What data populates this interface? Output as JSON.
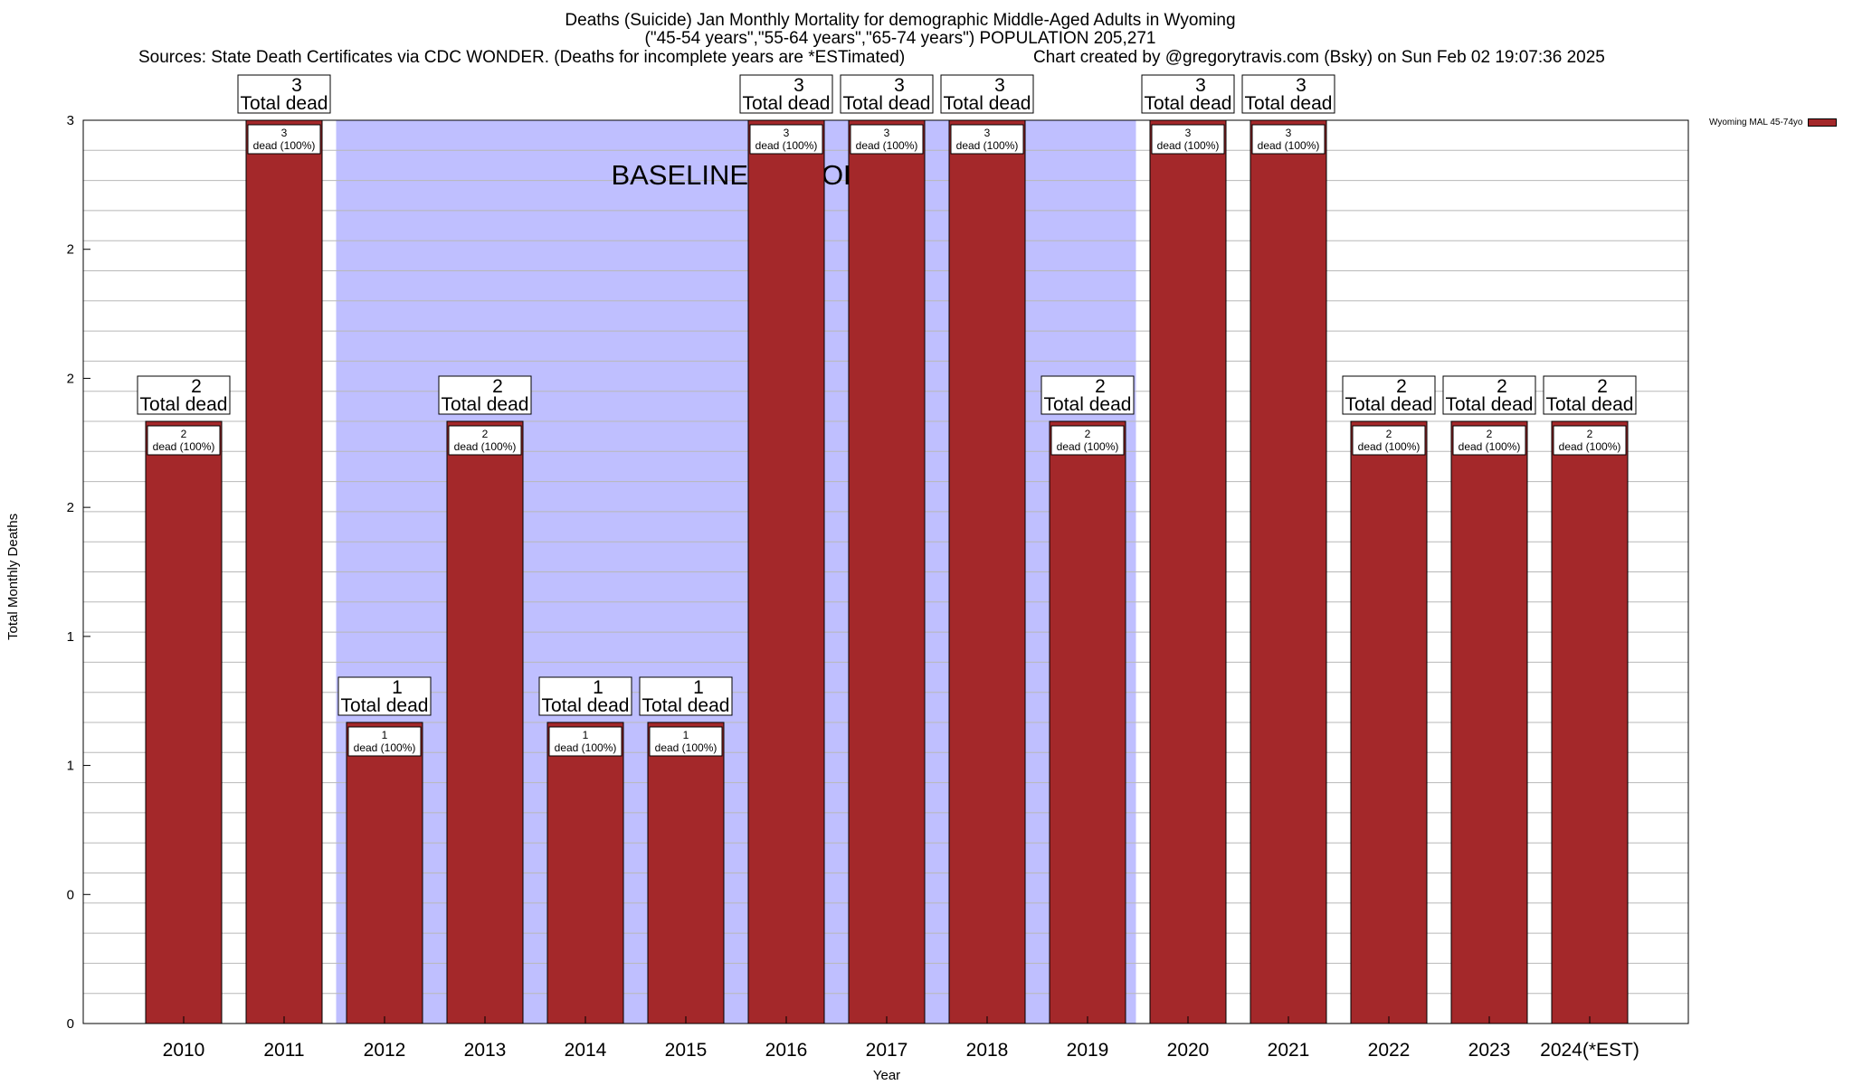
{
  "chart_data": {
    "type": "bar",
    "title": "Deaths (Suicide) Jan Monthly Mortality for demographic Middle-Aged Adults in Wyoming",
    "subtitle": "(\"45-54 years\",\"55-64 years\",\"65-74 years\") POPULATION 205,271",
    "sources": "Sources: State Death Certificates via CDC WONDER. (Deaths for incomplete years are *ESTimated)",
    "credit": "Chart created by @gregorytravis.com (Bsky) on Sun Feb 02 19:07:36 2025",
    "xlabel": "Year",
    "ylabel": "Total Monthly Deaths",
    "ylim": [
      0,
      3
    ],
    "yticks": [
      "0",
      "0",
      "1",
      "1",
      "2",
      "2",
      "2",
      "3"
    ],
    "categories": [
      "2010",
      "2011",
      "2012",
      "2013",
      "2014",
      "2015",
      "2016",
      "2017",
      "2018",
      "2019",
      "2020",
      "2021",
      "2022",
      "2023",
      "2024(*EST)"
    ],
    "series": [
      {
        "name": "Wyoming MAL 45-74yo",
        "values": [
          2,
          3,
          1,
          2,
          1,
          1,
          3,
          3,
          3,
          2,
          3,
          3,
          2,
          2,
          2
        ]
      }
    ],
    "bar_color": "#a4282a",
    "baseline": {
      "label": "BASELINE PERIOD",
      "from": "2012",
      "to": "2019",
      "color": "#bfbfff"
    },
    "total_label_suffix": "Total dead",
    "inner_label_suffix": "dead (100%)",
    "grid": true,
    "legend": "top-right"
  }
}
